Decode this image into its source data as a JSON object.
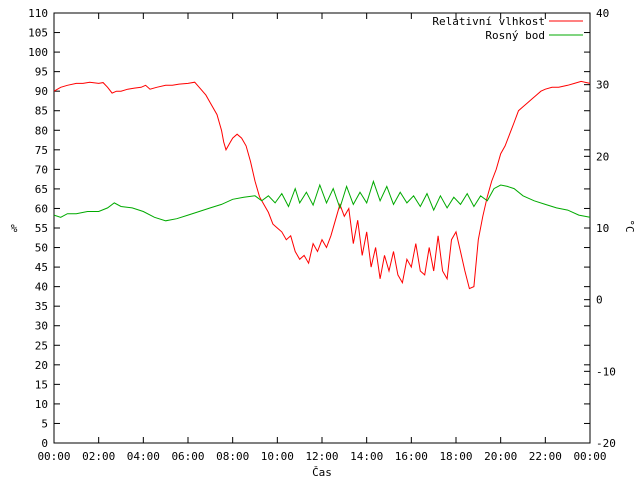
{
  "chart_data": {
    "type": "line",
    "xlabel": "Čas",
    "ylabel_left": "%",
    "ylabel_right": "°C",
    "x_ticks": [
      "00:00",
      "02:00",
      "04:00",
      "06:00",
      "08:00",
      "10:00",
      "12:00",
      "14:00",
      "16:00",
      "18:00",
      "20:00",
      "22:00",
      "00:00"
    ],
    "x_range_hours": [
      0,
      24
    ],
    "left_axis": {
      "min": 0,
      "max": 110,
      "step": 5
    },
    "right_axis": {
      "min": -20,
      "max": 40,
      "step": 10
    },
    "legend_position": "top-right",
    "grid": false,
    "series": [
      {
        "name": "Relativní vlhkost",
        "axis": "left",
        "color": "#ff0000",
        "points": [
          [
            0.0,
            90
          ],
          [
            0.3,
            91
          ],
          [
            0.6,
            91.5
          ],
          [
            1.0,
            92
          ],
          [
            1.3,
            92
          ],
          [
            1.6,
            92.3
          ],
          [
            2.0,
            92
          ],
          [
            2.2,
            92.2
          ],
          [
            2.4,
            91
          ],
          [
            2.6,
            89.5
          ],
          [
            2.8,
            90
          ],
          [
            3.0,
            90
          ],
          [
            3.3,
            90.5
          ],
          [
            3.6,
            90.8
          ],
          [
            3.9,
            91
          ],
          [
            4.1,
            91.5
          ],
          [
            4.3,
            90.5
          ],
          [
            4.6,
            91
          ],
          [
            5.0,
            91.5
          ],
          [
            5.3,
            91.5
          ],
          [
            5.6,
            91.8
          ],
          [
            6.0,
            92
          ],
          [
            6.3,
            92.3
          ],
          [
            6.5,
            91
          ],
          [
            6.8,
            89
          ],
          [
            7.0,
            87
          ],
          [
            7.3,
            84
          ],
          [
            7.5,
            80
          ],
          [
            7.6,
            77
          ],
          [
            7.7,
            75
          ],
          [
            7.9,
            77
          ],
          [
            8.0,
            78
          ],
          [
            8.2,
            79
          ],
          [
            8.4,
            78
          ],
          [
            8.6,
            76
          ],
          [
            8.8,
            72
          ],
          [
            9.0,
            67
          ],
          [
            9.2,
            63
          ],
          [
            9.4,
            61
          ],
          [
            9.6,
            59
          ],
          [
            9.8,
            56
          ],
          [
            10.0,
            55
          ],
          [
            10.2,
            54
          ],
          [
            10.4,
            52
          ],
          [
            10.6,
            53
          ],
          [
            10.8,
            49
          ],
          [
            11.0,
            47
          ],
          [
            11.2,
            48
          ],
          [
            11.4,
            46
          ],
          [
            11.6,
            51
          ],
          [
            11.8,
            49
          ],
          [
            12.0,
            52
          ],
          [
            12.2,
            50
          ],
          [
            12.4,
            53
          ],
          [
            12.6,
            57
          ],
          [
            12.8,
            61
          ],
          [
            13.0,
            58
          ],
          [
            13.2,
            60
          ],
          [
            13.4,
            51
          ],
          [
            13.6,
            57
          ],
          [
            13.8,
            48
          ],
          [
            14.0,
            54
          ],
          [
            14.2,
            45
          ],
          [
            14.4,
            50
          ],
          [
            14.6,
            42
          ],
          [
            14.8,
            48
          ],
          [
            15.0,
            44
          ],
          [
            15.2,
            49
          ],
          [
            15.4,
            43
          ],
          [
            15.6,
            41
          ],
          [
            15.8,
            47
          ],
          [
            16.0,
            45
          ],
          [
            16.2,
            51
          ],
          [
            16.4,
            44
          ],
          [
            16.6,
            43
          ],
          [
            16.8,
            50
          ],
          [
            17.0,
            44
          ],
          [
            17.2,
            53
          ],
          [
            17.4,
            44
          ],
          [
            17.6,
            42
          ],
          [
            17.8,
            52
          ],
          [
            18.0,
            54
          ],
          [
            18.2,
            49
          ],
          [
            18.4,
            44
          ],
          [
            18.6,
            39.5
          ],
          [
            18.8,
            40
          ],
          [
            19.0,
            52
          ],
          [
            19.2,
            58
          ],
          [
            19.4,
            63
          ],
          [
            19.6,
            67
          ],
          [
            19.8,
            70
          ],
          [
            20.0,
            74
          ],
          [
            20.2,
            76
          ],
          [
            20.4,
            79
          ],
          [
            20.6,
            82
          ],
          [
            20.8,
            85
          ],
          [
            21.0,
            86
          ],
          [
            21.2,
            87
          ],
          [
            21.4,
            88
          ],
          [
            21.6,
            89
          ],
          [
            21.8,
            90
          ],
          [
            22.0,
            90.5
          ],
          [
            22.3,
            91
          ],
          [
            22.6,
            91
          ],
          [
            23.0,
            91.5
          ],
          [
            23.3,
            92
          ],
          [
            23.6,
            92.5
          ],
          [
            24.0,
            92
          ]
        ]
      },
      {
        "name": "Rosný bod",
        "axis": "right",
        "color": "#00aa00",
        "points": [
          [
            0.0,
            11.8
          ],
          [
            0.3,
            11.5
          ],
          [
            0.6,
            12.0
          ],
          [
            1.0,
            12.0
          ],
          [
            1.5,
            12.3
          ],
          [
            2.0,
            12.3
          ],
          [
            2.4,
            12.8
          ],
          [
            2.7,
            13.5
          ],
          [
            3.0,
            13.0
          ],
          [
            3.5,
            12.8
          ],
          [
            4.0,
            12.3
          ],
          [
            4.5,
            11.5
          ],
          [
            5.0,
            11.0
          ],
          [
            5.5,
            11.3
          ],
          [
            6.0,
            11.8
          ],
          [
            6.5,
            12.3
          ],
          [
            7.0,
            12.8
          ],
          [
            7.5,
            13.3
          ],
          [
            8.0,
            14.0
          ],
          [
            8.5,
            14.3
          ],
          [
            9.0,
            14.5
          ],
          [
            9.3,
            13.8
          ],
          [
            9.6,
            14.5
          ],
          [
            9.9,
            13.5
          ],
          [
            10.2,
            14.8
          ],
          [
            10.5,
            13.0
          ],
          [
            10.8,
            15.5
          ],
          [
            11.0,
            13.5
          ],
          [
            11.3,
            15.0
          ],
          [
            11.6,
            13.2
          ],
          [
            11.9,
            16.0
          ],
          [
            12.2,
            13.5
          ],
          [
            12.5,
            15.5
          ],
          [
            12.8,
            12.8
          ],
          [
            13.1,
            15.8
          ],
          [
            13.4,
            13.3
          ],
          [
            13.7,
            15.0
          ],
          [
            14.0,
            13.5
          ],
          [
            14.3,
            16.5
          ],
          [
            14.6,
            13.8
          ],
          [
            14.9,
            15.8
          ],
          [
            15.2,
            13.3
          ],
          [
            15.5,
            15.0
          ],
          [
            15.8,
            13.5
          ],
          [
            16.1,
            14.5
          ],
          [
            16.4,
            13.0
          ],
          [
            16.7,
            14.8
          ],
          [
            17.0,
            12.5
          ],
          [
            17.3,
            14.5
          ],
          [
            17.6,
            12.8
          ],
          [
            17.9,
            14.3
          ],
          [
            18.2,
            13.3
          ],
          [
            18.5,
            14.8
          ],
          [
            18.8,
            13.0
          ],
          [
            19.1,
            14.5
          ],
          [
            19.4,
            13.8
          ],
          [
            19.7,
            15.5
          ],
          [
            20.0,
            16.0
          ],
          [
            20.3,
            15.8
          ],
          [
            20.6,
            15.5
          ],
          [
            21.0,
            14.5
          ],
          [
            21.5,
            13.8
          ],
          [
            22.0,
            13.3
          ],
          [
            22.5,
            12.8
          ],
          [
            23.0,
            12.5
          ],
          [
            23.5,
            11.8
          ],
          [
            24.0,
            11.5
          ]
        ]
      }
    ]
  }
}
